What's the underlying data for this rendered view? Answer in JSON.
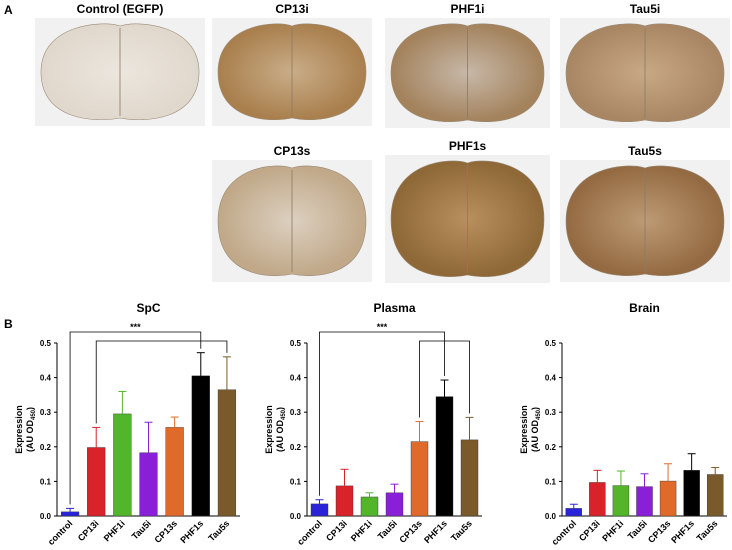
{
  "panel_a": {
    "label": "A",
    "images": [
      "Control (EGFP)",
      "CP13i",
      "PHF1i",
      "Tau5i",
      "CP13s",
      "PHF1s",
      "Tau5s"
    ]
  },
  "panel_b": {
    "label": "B"
  },
  "chart_data": [
    {
      "type": "bar",
      "title": "SpC",
      "categories": [
        "control",
        "CP13i",
        "PHF1i",
        "Tau5i",
        "CP13s",
        "PHF1s",
        "Tau5s"
      ],
      "values": [
        0.012,
        0.198,
        0.295,
        0.183,
        0.256,
        0.405,
        0.365
      ],
      "errors": [
        0.01,
        0.058,
        0.065,
        0.088,
        0.03,
        0.067,
        0.095
      ],
      "colors": [
        "#2a24d8",
        "#d8232a",
        "#52b52a",
        "#8a1fd8",
        "#e06a2a",
        "#000000",
        "#7a5a2a"
      ],
      "ylim": [
        0,
        0.5
      ],
      "yticks": [
        {
          "value": 0,
          "label": "0.0"
        },
        0.1,
        0.2,
        0.3,
        0.4,
        0.5
      ],
      "y_label": [
        "Expression",
        "(AU OD",
        "450",
        ")"
      ],
      "annotation": {
        "text": "***",
        "brackets": [
          [
            "control",
            "PHF1s"
          ],
          [
            "CP13i",
            "Tau5s"
          ]
        ]
      }
    },
    {
      "type": "bar",
      "title": "Plasma",
      "categories": [
        "control",
        "CP13i",
        "PHF1i",
        "Tau5i",
        "CP13s",
        "PHF1s",
        "Tau5s"
      ],
      "values": [
        0.035,
        0.087,
        0.055,
        0.067,
        0.215,
        0.345,
        0.22
      ],
      "errors": [
        0.012,
        0.048,
        0.012,
        0.025,
        0.058,
        0.048,
        0.065
      ],
      "colors": [
        "#2a24d8",
        "#d8232a",
        "#52b52a",
        "#8a1fd8",
        "#e06a2a",
        "#000000",
        "#7a5a2a"
      ],
      "ylim": [
        0,
        0.5
      ],
      "yticks": [
        {
          "value": 0,
          "label": "0.0"
        },
        0.1,
        0.2,
        0.3,
        0.4,
        0.5
      ],
      "y_label": [
        "Expression",
        "(AU OD",
        "450",
        ")"
      ],
      "annotation": {
        "text": "***",
        "brackets": [
          [
            "control",
            "PHF1s"
          ],
          [
            "CP13s",
            "Tau5s"
          ]
        ]
      }
    },
    {
      "type": "bar",
      "title": "Brain",
      "categories": [
        "control",
        "CP13i",
        "PHF1i",
        "Tau5i",
        "CP13s",
        "PHF1s",
        "Tau5s"
      ],
      "values": [
        0.022,
        0.097,
        0.088,
        0.085,
        0.101,
        0.132,
        0.12
      ],
      "errors": [
        0.012,
        0.035,
        0.042,
        0.037,
        0.05,
        0.048,
        0.02
      ],
      "colors": [
        "#2a24d8",
        "#d8232a",
        "#52b52a",
        "#8a1fd8",
        "#e06a2a",
        "#000000",
        "#7a5a2a"
      ],
      "ylim": [
        0,
        0.5
      ],
      "yticks": [
        {
          "value": 0,
          "label": "0.0"
        },
        0.1,
        0.2,
        0.3,
        0.4,
        0.5
      ],
      "y_label": [
        "Expression",
        "(AU OD",
        "450",
        ")"
      ]
    }
  ]
}
